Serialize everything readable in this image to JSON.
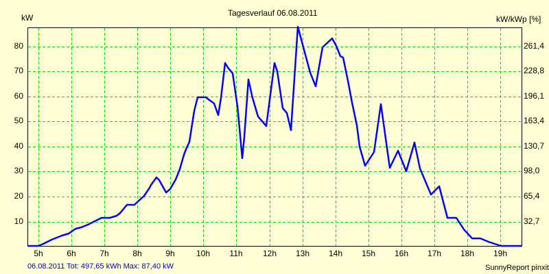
{
  "header": {
    "title": "Tagesverlauf 06.08.2011",
    "left_unit": "kW",
    "right_unit": "kW/kWp [%]"
  },
  "footer": {
    "summary": "06.08.2011 Tot: 497,65 kWh Max: 87,40 kW",
    "credit": "SunnyReport pinxit"
  },
  "colors": {
    "background": "#ffffd6",
    "grid": "#00e000",
    "line": "#0000ff",
    "summary_text": "#0000cc"
  },
  "axes": {
    "y_left_ticks": [
      "80",
      "70",
      "60",
      "50",
      "40",
      "30",
      "20",
      "10"
    ],
    "y_right_ticks": [
      "261,4",
      "228,8",
      "196,1",
      "163,4",
      "130,7",
      "98,0",
      "65,4",
      "32,7"
    ],
    "x_ticks": [
      "5h",
      "6h",
      "7h",
      "8h",
      "9h",
      "10h",
      "11h",
      "12h",
      "13h",
      "14h",
      "15h",
      "16h",
      "17h",
      "18h",
      "19h"
    ]
  },
  "chart_data": {
    "type": "line",
    "title": "Tagesverlauf 06.08.2011",
    "xlabel": "",
    "ylabel": "kW",
    "ylabel_right": "kW/kWp [%]",
    "ylim": [
      0,
      87.4
    ],
    "y_right_ticks": [
      32.7,
      65.4,
      98.0,
      130.7,
      163.4,
      196.1,
      228.8,
      261.4
    ],
    "grid": true,
    "legend": null,
    "series": [
      {
        "name": "kW",
        "x_hours": [
          4.67,
          5.0,
          5.15,
          5.4,
          5.7,
          5.92,
          6.12,
          6.29,
          6.5,
          6.75,
          6.91,
          7.16,
          7.37,
          7.47,
          7.68,
          7.91,
          8.0,
          8.2,
          8.37,
          8.41,
          8.58,
          8.66,
          8.87,
          9.0,
          9.16,
          9.29,
          9.41,
          9.47,
          9.58,
          9.72,
          9.83,
          10.08,
          10.19,
          10.33,
          10.46,
          10.54,
          10.66,
          10.77,
          10.89,
          11.04,
          11.12,
          11.18,
          11.24,
          11.37,
          11.49,
          11.66,
          11.91,
          12.16,
          12.24,
          12.41,
          12.54,
          12.66,
          12.86,
          13.09,
          13.24,
          13.41,
          13.62,
          13.91,
          14.04,
          14.16,
          14.24,
          14.41,
          14.51,
          14.66,
          14.74,
          14.91,
          15.18,
          15.38,
          15.65,
          15.91,
          16.16,
          16.41,
          16.58,
          16.91,
          17.16,
          17.41,
          17.68,
          17.91,
          18.16,
          18.41,
          18.66,
          18.91,
          19.03,
          19.66
        ],
        "values": [
          0,
          0,
          1,
          3,
          4,
          5,
          7,
          8,
          9,
          11,
          12,
          12,
          13,
          14,
          17,
          17,
          18,
          20,
          23,
          24,
          28,
          27,
          22,
          23,
          27,
          31,
          37,
          37,
          39,
          42,
          59,
          59,
          58,
          56,
          52,
          59,
          73,
          71,
          69,
          56,
          44,
          35,
          44,
          67,
          59,
          52,
          48,
          73,
          70,
          55,
          53,
          46,
          88,
          76,
          69,
          64,
          80,
          83,
          80,
          76,
          75,
          65,
          57,
          48,
          40,
          32,
          38,
          57,
          32,
          38,
          30,
          42,
          31,
          21,
          24,
          12,
          12,
          8,
          3,
          3,
          2,
          1,
          0,
          0
        ]
      }
    ],
    "annotations": [
      "06.08.2011 Tot: 497,65 kWh Max: 87,40 kW"
    ]
  }
}
